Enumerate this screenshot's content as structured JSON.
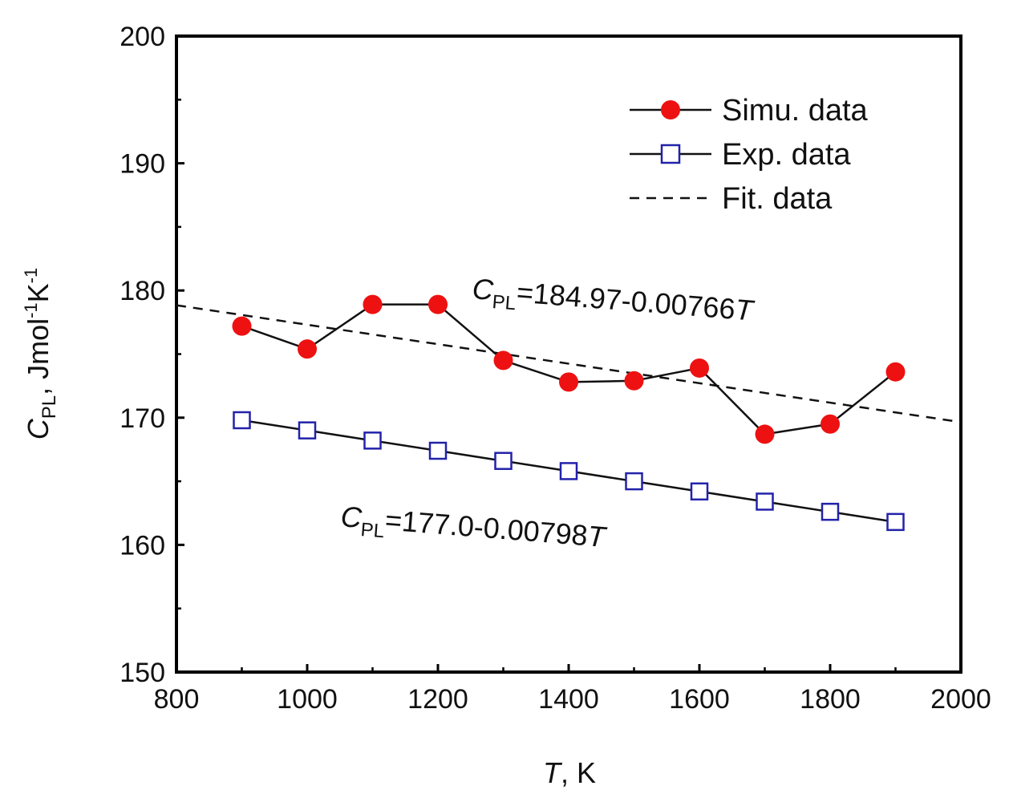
{
  "chart_data": {
    "type": "line",
    "xlabel": {
      "var": "T",
      "unit": ", K"
    },
    "ylabel": {
      "var": "C",
      "sub": "PL",
      "unit1": ", Jmol",
      "sup1": "-1",
      "unit2": "K",
      "sup2": "-1"
    },
    "xlim": [
      800,
      2000
    ],
    "ylim": [
      150,
      200
    ],
    "xticks": [
      800,
      1000,
      1200,
      1400,
      1600,
      1800,
      2000
    ],
    "yticks": [
      150,
      160,
      170,
      180,
      190,
      200
    ],
    "legend_position": "top-right",
    "series": [
      {
        "name": "Simu. data",
        "marker": "filled-circle",
        "line": "solid",
        "x": [
          900,
          1000,
          1100,
          1200,
          1300,
          1400,
          1500,
          1600,
          1700,
          1800,
          1900
        ],
        "y": [
          177.2,
          175.4,
          178.9,
          178.9,
          174.5,
          172.8,
          172.9,
          173.9,
          168.7,
          169.5,
          173.6
        ]
      },
      {
        "name": "Exp. data",
        "marker": "open-square",
        "line": "solid",
        "x": [
          900,
          1000,
          1100,
          1200,
          1300,
          1400,
          1500,
          1600,
          1700,
          1800,
          1900
        ],
        "y": [
          169.8,
          169.0,
          168.2,
          167.4,
          166.6,
          165.8,
          165.0,
          164.2,
          163.4,
          162.6,
          161.8
        ]
      },
      {
        "name": "Fit. data",
        "marker": "none",
        "line": "dashed",
        "x": [
          800,
          2000
        ],
        "y": [
          178.84,
          169.65
        ]
      }
    ],
    "annotations": [
      {
        "var": "C",
        "sub": "PL",
        "text": "=184.97-0.00766",
        "tail": "T"
      },
      {
        "var": "C",
        "sub": "PL",
        "text": "=177.0-0.00798",
        "tail": "T"
      }
    ],
    "colors": {
      "simu_fill": "#ee1111",
      "exp_stroke": "#2222aa",
      "line": "#111111",
      "axis": "#000000"
    }
  }
}
